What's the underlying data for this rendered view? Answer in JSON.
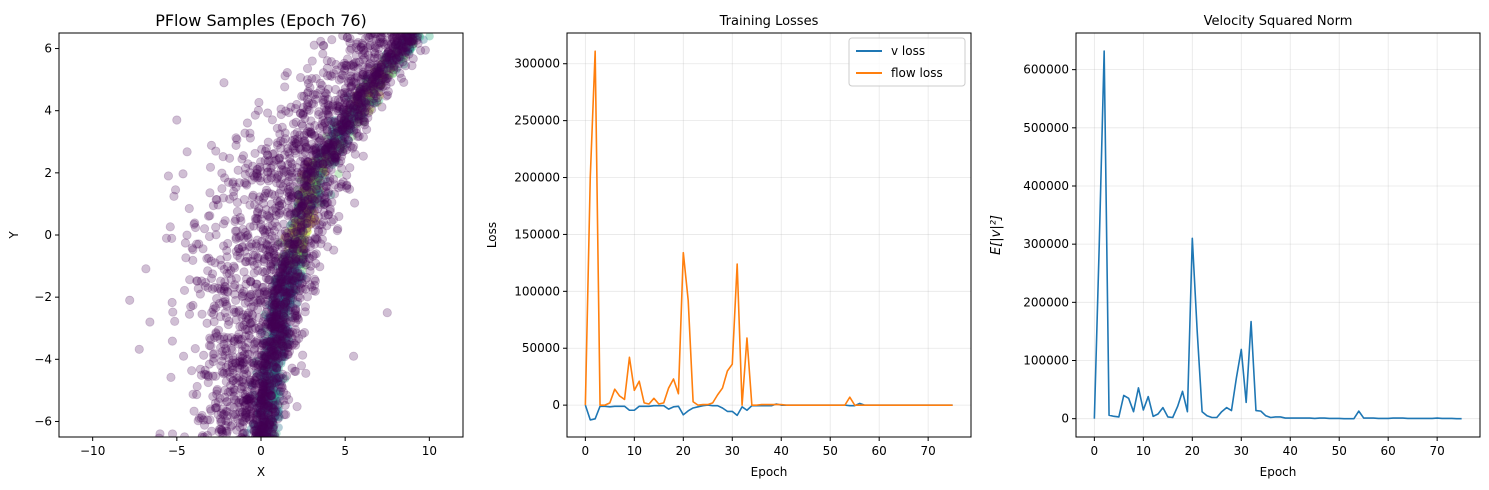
{
  "chart_data": [
    {
      "type": "scatter",
      "title": "PFlow Samples (Epoch 76)",
      "xlabel": "X",
      "ylabel": "Y",
      "xlim": [
        -12,
        12
      ],
      "ylim": [
        -6.5,
        6.5
      ],
      "xticks": [
        -10,
        -5,
        0,
        5,
        10
      ],
      "yticks": [
        -6,
        -4,
        -2,
        0,
        2,
        4,
        6
      ],
      "xtick_labels": [
        "−10",
        "−5",
        "0",
        "5",
        "10"
      ],
      "ytick_labels": [
        "−6",
        "−4",
        "−2",
        "0",
        "2",
        "4",
        "6"
      ],
      "grid": false,
      "colormap": "viridis",
      "point_color": "#440154",
      "point_alpha": 0.25,
      "trend_points": [
        {
          "y": -6.5,
          "x": 0.2
        },
        {
          "y": -4.0,
          "x": 0.7
        },
        {
          "y": -2.0,
          "x": 1.3
        },
        {
          "y": 0.0,
          "x": 2.2
        },
        {
          "y": 2.0,
          "x": 3.3
        },
        {
          "y": 4.0,
          "x": 5.6
        },
        {
          "y": 6.5,
          "x": 9.0
        }
      ],
      "outliers": [
        {
          "x": -7.8,
          "y": -2.1
        },
        {
          "x": -6.6,
          "y": -2.8
        },
        {
          "x": -5.5,
          "y": 1.9
        },
        {
          "x": -5.0,
          "y": 3.7
        },
        {
          "x": -4.6,
          "y": -3.9
        },
        {
          "x": -6.0,
          "y": -6.4
        },
        {
          "x": -2.2,
          "y": 4.9
        },
        {
          "x": 7.5,
          "y": -2.5
        },
        {
          "x": 5.5,
          "y": -3.9
        },
        {
          "x": 6.5,
          "y": 6.1
        },
        {
          "x": 3.7,
          "y": 6.1
        }
      ]
    },
    {
      "type": "line",
      "title": "Training Losses",
      "xlabel": "Epoch",
      "ylabel": "Loss",
      "xlim": [
        -3.75,
        78.75
      ],
      "ylim": [
        -28000,
        327000
      ],
      "xticks": [
        0,
        10,
        20,
        30,
        40,
        50,
        60,
        70
      ],
      "yticks": [
        0,
        50000,
        100000,
        150000,
        200000,
        250000,
        300000
      ],
      "ytick_labels": [
        "0",
        "50000",
        "100000",
        "150000",
        "200000",
        "250000",
        "300000"
      ],
      "grid": true,
      "legend": "top-right",
      "series": [
        {
          "name": "v loss",
          "color": "#1f77b4",
          "values": [
            0,
            -13000,
            -12000,
            -1000,
            -1000,
            -1500,
            -1000,
            -1000,
            -1000,
            -4500,
            -4500,
            -1000,
            -1000,
            -1000,
            -500,
            -500,
            -500,
            -3500,
            -1500,
            -1000,
            -8500,
            -5000,
            -2500,
            -1500,
            -500,
            0,
            -500,
            -500,
            -2500,
            -5500,
            -5500,
            -9000,
            -1500,
            -4500,
            -500,
            -500,
            -500,
            -500,
            -500,
            1000,
            0,
            0,
            0,
            0,
            0,
            0,
            0,
            0,
            0,
            0,
            0,
            0,
            0,
            0,
            -500,
            -500,
            1500,
            0,
            0,
            0,
            0,
            0,
            0,
            0,
            0,
            0,
            0,
            0,
            0,
            0,
            0,
            0,
            0,
            0,
            0,
            0
          ]
        },
        {
          "name": "flow loss",
          "color": "#ff7f0e",
          "values": [
            0,
            200000,
            311000,
            0,
            0,
            2000,
            14000,
            8000,
            5000,
            42000,
            13000,
            21000,
            2000,
            1000,
            6000,
            1000,
            2000,
            15000,
            23000,
            10000,
            134000,
            92000,
            3000,
            0,
            500,
            500,
            2000,
            9000,
            15000,
            30000,
            36000,
            124000,
            0,
            59000,
            0,
            0,
            500,
            500,
            500,
            500,
            500,
            0,
            0,
            0,
            0,
            0,
            0,
            0,
            0,
            0,
            0,
            0,
            0,
            0,
            7000,
            0,
            0,
            0,
            0,
            0,
            0,
            0,
            0,
            0,
            0,
            0,
            0,
            0,
            0,
            0,
            0,
            0,
            0,
            0,
            0,
            0
          ]
        }
      ]
    },
    {
      "type": "line",
      "title": "Velocity Squared Norm",
      "xlabel": "Epoch",
      "ylabel": "E[|v|²]",
      "xlim": [
        -3.75,
        78.75
      ],
      "ylim": [
        -31500,
        663000
      ],
      "xticks": [
        0,
        10,
        20,
        30,
        40,
        50,
        60,
        70
      ],
      "yticks": [
        0,
        100000,
        200000,
        300000,
        400000,
        500000,
        600000
      ],
      "ytick_labels": [
        "0",
        "100000",
        "200000",
        "300000",
        "400000",
        "500000",
        "600000"
      ],
      "grid": true,
      "series": [
        {
          "color": "#1f77b4",
          "values": [
            0,
            300000,
            632000,
            6000,
            4000,
            3000,
            40000,
            35000,
            12000,
            53000,
            15000,
            38000,
            4000,
            8000,
            19000,
            3000,
            2000,
            21000,
            47000,
            12000,
            310000,
            150000,
            12000,
            5000,
            2000,
            2000,
            12000,
            19000,
            14000,
            70000,
            119000,
            28000,
            167000,
            14000,
            13000,
            5000,
            2000,
            3000,
            3000,
            1000,
            1000,
            1000,
            1000,
            1000,
            1000,
            500,
            1000,
            1000,
            500,
            500,
            500,
            0,
            0,
            0,
            13000,
            1000,
            1000,
            1000,
            500,
            500,
            500,
            1000,
            1000,
            1000,
            500,
            500,
            500,
            500,
            500,
            500,
            1000,
            500,
            500,
            500,
            0,
            0
          ]
        }
      ]
    }
  ]
}
